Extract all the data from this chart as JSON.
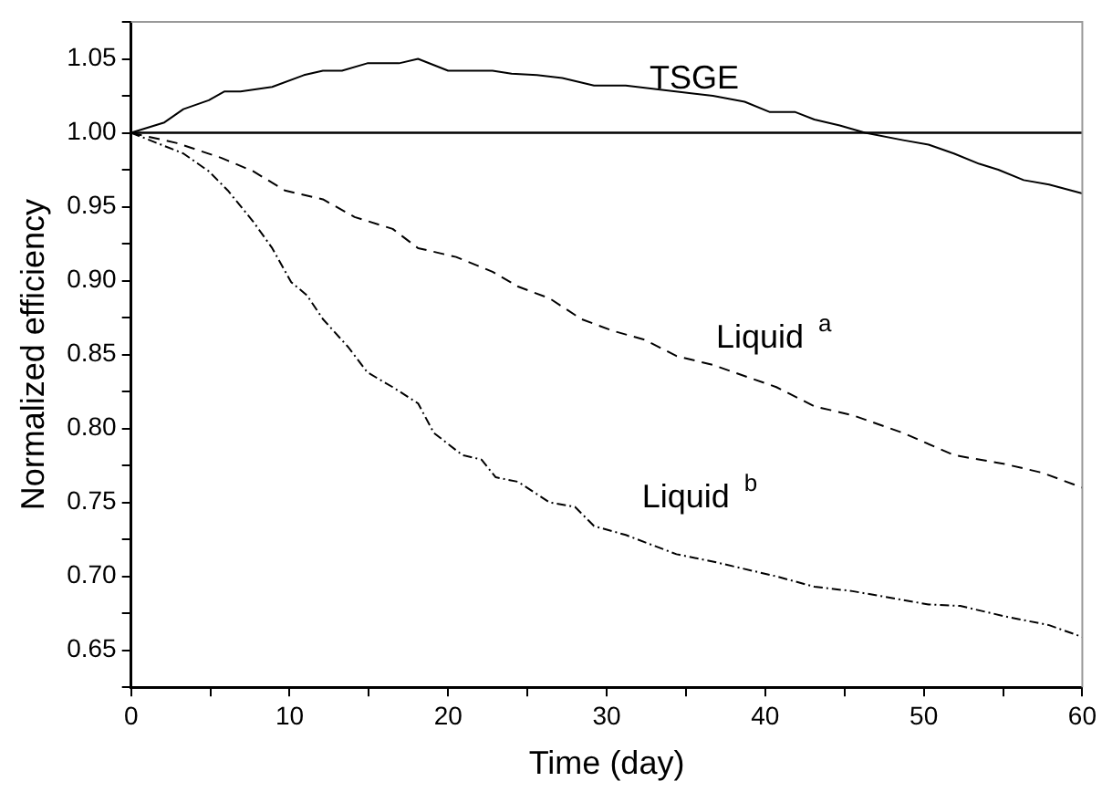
{
  "chart_data": {
    "type": "line",
    "xlabel": "Time (day)",
    "ylabel": "Normalized efficiency",
    "xlim": [
      0,
      60
    ],
    "xticks": [
      0,
      {
        "value": 5,
        "label": null
      },
      10,
      {
        "value": 15,
        "label": null
      },
      20,
      {
        "value": 25,
        "label": null
      },
      30,
      {
        "value": 35,
        "label": null
      },
      40,
      {
        "value": 45,
        "label": null
      },
      50,
      {
        "value": 55,
        "label": null
      },
      60
    ],
    "ylim": [
      0.625,
      1.075
    ],
    "yticks": [
      {
        "value": 0.625,
        "label": null
      },
      0.65,
      {
        "value": 0.675,
        "label": null
      },
      {
        "value": 0.7,
        "label": "0.70"
      },
      {
        "value": 0.725,
        "label": null
      },
      0.75,
      {
        "value": 0.775,
        "label": null
      },
      {
        "value": 0.8,
        "label": "0.80"
      },
      {
        "value": 0.825,
        "label": null
      },
      0.85,
      {
        "value": 0.875,
        "label": null
      },
      {
        "value": 0.9,
        "label": "0.90"
      },
      {
        "value": 0.925,
        "label": null
      },
      0.95,
      {
        "value": 0.975,
        "label": null
      },
      {
        "value": 1.0,
        "label": "1.00"
      },
      {
        "value": 1.025,
        "label": null
      },
      1.05,
      {
        "value": 1.075,
        "label": null
      }
    ],
    "grid": false,
    "legend": false,
    "marker": "none",
    "ref_lines": [
      {
        "axis": "y",
        "value": 1.0,
        "color": "#000000",
        "line_style": "solid"
      }
    ],
    "series": [
      {
        "name": "TSGE",
        "color": "#000000",
        "line_style": "solid",
        "x": [
          0,
          2.1,
          3.3,
          4.9,
          5.9,
          6.9,
          8.9,
          10.9,
          12.1,
          13.3,
          14.9,
          16.9,
          18.1,
          20,
          22.8,
          24,
          25.6,
          27.2,
          29.2,
          31.2,
          33.5,
          36.7,
          38.7,
          40.3,
          41.9,
          43.1,
          44.7,
          46.3,
          48.7,
          50.3,
          51.9,
          53.5,
          54.7,
          56.3,
          57.9,
          60
        ],
        "values": [
          1.0,
          1.007,
          1.016,
          1.022,
          1.028,
          1.028,
          1.031,
          1.039,
          1.042,
          1.042,
          1.047,
          1.047,
          1.05,
          1.042,
          1.042,
          1.04,
          1.039,
          1.037,
          1.032,
          1.032,
          1.029,
          1.025,
          1.021,
          1.014,
          1.014,
          1.009,
          1.005,
          1.0,
          0.995,
          0.992,
          0.986,
          0.979,
          0.975,
          0.968,
          0.965,
          0.959
        ]
      },
      {
        "name": "Liquid $^{a}$",
        "color": "#000000",
        "line_style": "dashed",
        "x": [
          0,
          2.9,
          5.7,
          7.7,
          9.7,
          12.1,
          14.1,
          16.5,
          18.1,
          20.5,
          22.8,
          24.4,
          26.4,
          28.4,
          30.4,
          32.4,
          34.4,
          36.7,
          40.7,
          43.1,
          45.5,
          48.7,
          51.9,
          55.1,
          57.5,
          60
        ],
        "values": [
          1.0,
          0.993,
          0.983,
          0.974,
          0.961,
          0.955,
          0.943,
          0.935,
          0.922,
          0.916,
          0.906,
          0.896,
          0.888,
          0.874,
          0.866,
          0.86,
          0.849,
          0.843,
          0.828,
          0.815,
          0.809,
          0.797,
          0.782,
          0.776,
          0.77,
          0.76
        ]
      },
      {
        "name": "Liquid $^{b}$",
        "color": "#000000",
        "line_style": "dotted",
        "x": [
          0,
          3.3,
          4.9,
          6.1,
          7.7,
          8.9,
          10.1,
          11.1,
          12.1,
          13.7,
          14.9,
          16.5,
          18.1,
          19.1,
          20.9,
          22.1,
          23,
          24.4,
          26.4,
          28,
          29.2,
          31.2,
          34.4,
          36.7,
          40.7,
          43.1,
          45.5,
          50.3,
          52.3,
          55.1,
          57.9,
          60
        ],
        "values": [
          1.0,
          0.986,
          0.974,
          0.961,
          0.94,
          0.922,
          0.899,
          0.89,
          0.874,
          0.855,
          0.838,
          0.828,
          0.817,
          0.797,
          0.782,
          0.779,
          0.767,
          0.764,
          0.75,
          0.747,
          0.734,
          0.728,
          0.715,
          0.71,
          0.7,
          0.693,
          0.69,
          0.681,
          0.68,
          0.673,
          0.667,
          0.659
        ]
      }
    ]
  }
}
